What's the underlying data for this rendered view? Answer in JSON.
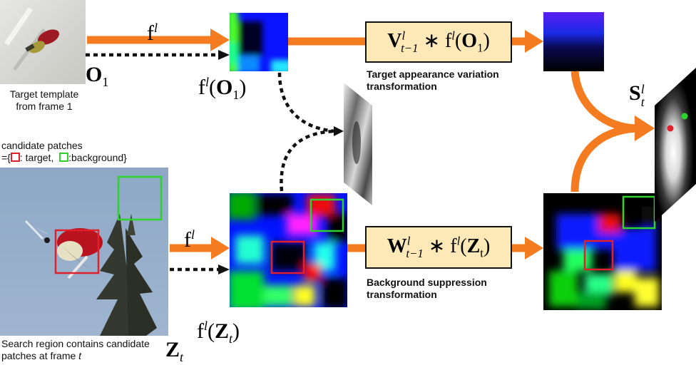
{
  "captions": {
    "template": [
      "Target template",
      "from frame 1"
    ],
    "candidate_title": "candidate patches",
    "candidate_legend_prefix": "={",
    "candidate_target": ": target,",
    "candidate_background": ":background}",
    "search_line1": "Search region contains candidate",
    "search_line2_prefix": "patches at frame ",
    "search_line2_var": "t",
    "appearance": [
      "Target appearance variation",
      "transformation"
    ],
    "suppression": [
      "Background suppression",
      "transformation"
    ]
  },
  "math": {
    "O1_bold": "O",
    "O1_sub": "1",
    "Zt_bold": "Z",
    "Zt_sub": "t",
    "f": "f",
    "l": "l",
    "fO_prefix": "f",
    "fO_open": "(",
    "fO_var": "O",
    "fO_sub": "1",
    "fO_close": ")",
    "fZ_prefix": "f",
    "fZ_open": "(",
    "fZ_var": "Z",
    "fZ_sub": "t",
    "fZ_close": ")",
    "S": "S",
    "S_sup": "l",
    "S_sub": "t",
    "V_expr": {
      "mat": "V",
      "sup": "l",
      "sub": "t−1",
      "op": " ∗ f",
      "fsup": "l",
      "open": "(",
      "var": "O",
      "vsub": "1",
      "close": ")"
    },
    "W_expr": {
      "mat": "W",
      "sup": "l",
      "sub": "t−1",
      "op": " ∗ f",
      "fsup": "l",
      "open": "(",
      "var": "Z",
      "vsub": "t",
      "close": ")"
    }
  },
  "colors": {
    "arrow": "#f47b20",
    "op_box_fill": "#fde9b8",
    "target_box": "#e0202a",
    "background_box": "#2cd42c",
    "dotted": "#111111"
  }
}
